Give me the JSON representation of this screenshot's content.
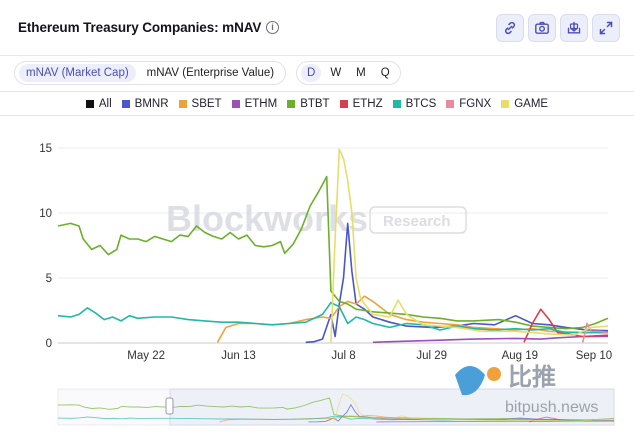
{
  "header": {
    "title": "Ethereum Treasury Companies: mNAV",
    "info_symbol": "i"
  },
  "toolbar": {
    "buttons": [
      {
        "name": "link-button",
        "icon": "link-icon"
      },
      {
        "name": "screenshot-button",
        "icon": "camera-icon"
      },
      {
        "name": "download-button",
        "icon": "download-icon"
      },
      {
        "name": "expand-button",
        "icon": "expand-icon"
      }
    ]
  },
  "controls": {
    "metric_options": [
      "mNAV (Market Cap)",
      "mNAV (Enterprise Value)"
    ],
    "metric_selected": "mNAV (Market Cap)",
    "period_options": [
      "D",
      "W",
      "M",
      "Q"
    ],
    "period_selected": "D"
  },
  "watermark": {
    "brand": "Blockworks",
    "tag": "Research",
    "site_cn": "比推",
    "site": "bitpush.news"
  },
  "colors": {
    "All": "#111111",
    "BMNR": "#4a56c9",
    "SBET": "#f0a23a",
    "ETHM": "#9b4fb8",
    "BTBT": "#6bb02a",
    "ETHZ": "#d9404f",
    "BTCS": "#20b8a8",
    "FGNX": "#e88aa0",
    "GAME": "#e8dc6a",
    "accent": "#4a4fb8"
  },
  "chart_data": {
    "type": "line",
    "title": "Ethereum Treasury Companies: mNAV",
    "ylim": [
      0,
      16
    ],
    "yticks": [
      0,
      5,
      10,
      15
    ],
    "xticks": [
      {
        "day": 12,
        "label": "May 22"
      },
      {
        "day": 34,
        "label": "Jun 13"
      },
      {
        "day": 59,
        "label": "Jul 8"
      },
      {
        "day": 80,
        "label": "Jul 29"
      },
      {
        "day": 101,
        "label": "Aug 19"
      },
      {
        "day": 123,
        "label": "Sep 10"
      }
    ],
    "xlim": [
      -9,
      122
    ],
    "legend_position": "top",
    "series": [
      {
        "name": "All",
        "points": []
      },
      {
        "name": "BMNR",
        "points": [
          [
            50,
            0.05
          ],
          [
            52,
            0.1
          ],
          [
            54,
            0.3
          ],
          [
            56,
            2.2
          ],
          [
            57,
            0.5
          ],
          [
            58,
            3.0
          ],
          [
            59,
            5.0
          ],
          [
            60,
            9.2
          ],
          [
            61,
            5.5
          ],
          [
            62,
            3.0
          ],
          [
            64,
            2.6
          ],
          [
            66,
            2.0
          ],
          [
            70,
            1.6
          ],
          [
            74,
            1.3
          ],
          [
            80,
            1.2
          ],
          [
            86,
            1.3
          ],
          [
            90,
            1.5
          ],
          [
            95,
            1.4
          ],
          [
            100,
            2.1
          ],
          [
            104,
            1.5
          ],
          [
            108,
            1.4
          ],
          [
            112,
            1.2
          ],
          [
            117,
            1.0
          ],
          [
            122,
            0.95
          ]
        ]
      },
      {
        "name": "SBET",
        "points": [
          [
            29,
            0.05
          ],
          [
            31,
            1.2
          ],
          [
            34,
            1.5
          ],
          [
            38,
            1.5
          ],
          [
            42,
            1.4
          ],
          [
            46,
            1.5
          ],
          [
            50,
            1.8
          ],
          [
            54,
            2.0
          ],
          [
            56,
            1.9
          ],
          [
            58,
            2.8
          ],
          [
            60,
            3.2
          ],
          [
            62,
            3.0
          ],
          [
            64,
            3.6
          ],
          [
            66,
            3.2
          ],
          [
            70,
            2.2
          ],
          [
            74,
            1.8
          ],
          [
            78,
            1.6
          ],
          [
            82,
            1.5
          ],
          [
            86,
            1.4
          ],
          [
            90,
            1.2
          ],
          [
            95,
            1.1
          ],
          [
            100,
            1.0
          ],
          [
            104,
            1.1
          ],
          [
            108,
            0.9
          ],
          [
            112,
            0.85
          ],
          [
            117,
            0.8
          ],
          [
            122,
            0.8
          ]
        ]
      },
      {
        "name": "ETHM",
        "points": [
          [
            66,
            0.05
          ],
          [
            70,
            0.1
          ],
          [
            80,
            0.2
          ],
          [
            90,
            0.3
          ],
          [
            100,
            0.35
          ],
          [
            106,
            0.3
          ],
          [
            110,
            0.4
          ],
          [
            116,
            0.5
          ],
          [
            122,
            0.5
          ]
        ]
      },
      {
        "name": "BTBT",
        "points": [
          [
            -9,
            9.0
          ],
          [
            -6,
            9.2
          ],
          [
            -4,
            9.0
          ],
          [
            -3,
            8.0
          ],
          [
            -1,
            7.2
          ],
          [
            1,
            7.5
          ],
          [
            3,
            6.8
          ],
          [
            5,
            7.2
          ],
          [
            6,
            8.3
          ],
          [
            8,
            8.0
          ],
          [
            10,
            8.0
          ],
          [
            12,
            7.8
          ],
          [
            14,
            8.2
          ],
          [
            16,
            8.0
          ],
          [
            18,
            7.8
          ],
          [
            20,
            8.3
          ],
          [
            22,
            8.2
          ],
          [
            24,
            9.0
          ],
          [
            26,
            8.5
          ],
          [
            28,
            8.2
          ],
          [
            30,
            8.0
          ],
          [
            32,
            8.5
          ],
          [
            34,
            8.0
          ],
          [
            36,
            8.3
          ],
          [
            38,
            7.5
          ],
          [
            40,
            7.4
          ],
          [
            42,
            7.5
          ],
          [
            44,
            7.8
          ],
          [
            45,
            6.9
          ],
          [
            47,
            7.6
          ],
          [
            49,
            8.8
          ],
          [
            51,
            10.5
          ],
          [
            53,
            11.6
          ],
          [
            55,
            12.8
          ],
          [
            56,
            4.0
          ],
          [
            58,
            3.2
          ],
          [
            60,
            3.0
          ],
          [
            62,
            2.6
          ],
          [
            64,
            2.5
          ],
          [
            66,
            2.4
          ],
          [
            70,
            2.3
          ],
          [
            74,
            2.2
          ],
          [
            78,
            2.0
          ],
          [
            82,
            1.9
          ],
          [
            86,
            1.7
          ],
          [
            90,
            1.7
          ],
          [
            96,
            1.8
          ],
          [
            100,
            1.6
          ],
          [
            104,
            1.3
          ],
          [
            108,
            1.2
          ],
          [
            112,
            1.1
          ],
          [
            116,
            1.2
          ],
          [
            119,
            1.5
          ],
          [
            122,
            1.9
          ]
        ]
      },
      {
        "name": "ETHZ",
        "points": [
          [
            102,
            0.05
          ],
          [
            104,
            1.5
          ],
          [
            106,
            2.6
          ],
          [
            108,
            1.8
          ],
          [
            110,
            0.8
          ],
          [
            116,
            0.5
          ],
          [
            122,
            0.6
          ]
        ]
      },
      {
        "name": "BTCS",
        "points": [
          [
            -9,
            2.1
          ],
          [
            -6,
            2.0
          ],
          [
            -4,
            2.2
          ],
          [
            -2,
            2.7
          ],
          [
            0,
            2.3
          ],
          [
            2,
            1.8
          ],
          [
            4,
            2.0
          ],
          [
            6,
            1.7
          ],
          [
            8,
            2.1
          ],
          [
            10,
            1.9
          ],
          [
            14,
            2.0
          ],
          [
            18,
            2.0
          ],
          [
            22,
            1.8
          ],
          [
            26,
            1.7
          ],
          [
            30,
            1.6
          ],
          [
            34,
            1.6
          ],
          [
            38,
            1.5
          ],
          [
            42,
            1.4
          ],
          [
            46,
            1.5
          ],
          [
            50,
            1.6
          ],
          [
            54,
            2.2
          ],
          [
            56,
            3.1
          ],
          [
            58,
            2.8
          ],
          [
            60,
            1.5
          ],
          [
            62,
            2.0
          ],
          [
            64,
            1.8
          ],
          [
            66,
            1.5
          ],
          [
            70,
            1.2
          ],
          [
            74,
            1.5
          ],
          [
            78,
            1.4
          ],
          [
            82,
            1.0
          ],
          [
            86,
            1.3
          ],
          [
            90,
            1.1
          ],
          [
            95,
            1.0
          ],
          [
            100,
            1.1
          ],
          [
            104,
            1.0
          ],
          [
            108,
            1.1
          ],
          [
            112,
            0.8
          ],
          [
            117,
            0.8
          ],
          [
            122,
            0.8
          ]
        ]
      },
      {
        "name": "FGNX",
        "points": [
          [
            116,
            0.05
          ],
          [
            117,
            1.5
          ],
          [
            118,
            0.9
          ],
          [
            120,
            0.9
          ],
          [
            122,
            0.8
          ]
        ]
      },
      {
        "name": "GAME",
        "points": [
          [
            56,
            0.05
          ],
          [
            57,
            8.0
          ],
          [
            58,
            14.9
          ],
          [
            59,
            14.2
          ],
          [
            60,
            12.5
          ],
          [
            61,
            10.0
          ],
          [
            62,
            5.0
          ],
          [
            63,
            3.5
          ],
          [
            64,
            3.0
          ],
          [
            66,
            2.2
          ],
          [
            70,
            2.0
          ],
          [
            72,
            3.3
          ],
          [
            74,
            2.2
          ],
          [
            78,
            1.4
          ],
          [
            82,
            1.3
          ],
          [
            86,
            1.2
          ],
          [
            92,
            0.9
          ],
          [
            100,
            0.9
          ],
          [
            108,
            0.7
          ],
          [
            114,
            0.6
          ],
          [
            118,
            1.2
          ],
          [
            122,
            1.3
          ]
        ]
      }
    ]
  }
}
